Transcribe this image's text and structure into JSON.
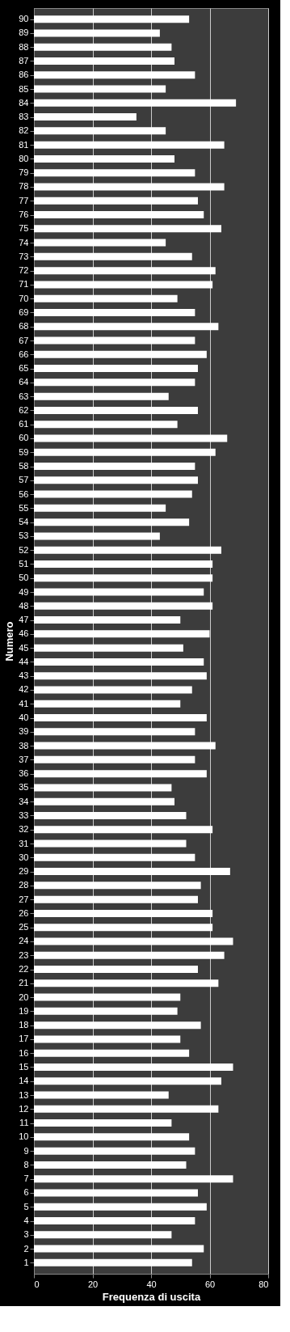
{
  "chart_data": {
    "type": "bar",
    "orientation": "horizontal",
    "xlabel": "Frequenza di uscita",
    "ylabel": "Numero",
    "categories": [
      "90",
      "89",
      "88",
      "87",
      "86",
      "85",
      "84",
      "83",
      "82",
      "81",
      "80",
      "79",
      "78",
      "77",
      "76",
      "75",
      "74",
      "73",
      "72",
      "71",
      "70",
      "69",
      "68",
      "67",
      "66",
      "65",
      "64",
      "63",
      "62",
      "61",
      "60",
      "59",
      "58",
      "57",
      "56",
      "55",
      "54",
      "53",
      "52",
      "51",
      "50",
      "49",
      "48",
      "47",
      "46",
      "45",
      "44",
      "43",
      "42",
      "41",
      "40",
      "39",
      "38",
      "37",
      "36",
      "35",
      "34",
      "33",
      "32",
      "31",
      "30",
      "29",
      "28",
      "27",
      "26",
      "25",
      "24",
      "23",
      "22",
      "21",
      "20",
      "19",
      "18",
      "17",
      "16",
      "15",
      "14",
      "13",
      "12",
      "11",
      "10",
      "9",
      "8",
      "7",
      "6",
      "5",
      "4",
      "3",
      "2",
      "1"
    ],
    "values": [
      53,
      43,
      47,
      48,
      55,
      45,
      69,
      35,
      45,
      65,
      48,
      55,
      65,
      56,
      58,
      64,
      45,
      54,
      62,
      61,
      49,
      55,
      63,
      55,
      59,
      56,
      55,
      46,
      56,
      49,
      66,
      62,
      55,
      56,
      54,
      45,
      53,
      43,
      64,
      61,
      61,
      58,
      61,
      50,
      60,
      51,
      58,
      59,
      54,
      50,
      59,
      55,
      62,
      55,
      59,
      47,
      48,
      52,
      61,
      52,
      55,
      67,
      57,
      56,
      61,
      61,
      68,
      65,
      56,
      63,
      50,
      49,
      57,
      50,
      53,
      68,
      64,
      46,
      63,
      47,
      53,
      55,
      52,
      68,
      56,
      59,
      55,
      47,
      58,
      54
    ],
    "color": "#ffffff",
    "xlim": [
      0,
      80
    ],
    "xticks": [
      0,
      20,
      40,
      60,
      80
    ],
    "grid": "x"
  }
}
